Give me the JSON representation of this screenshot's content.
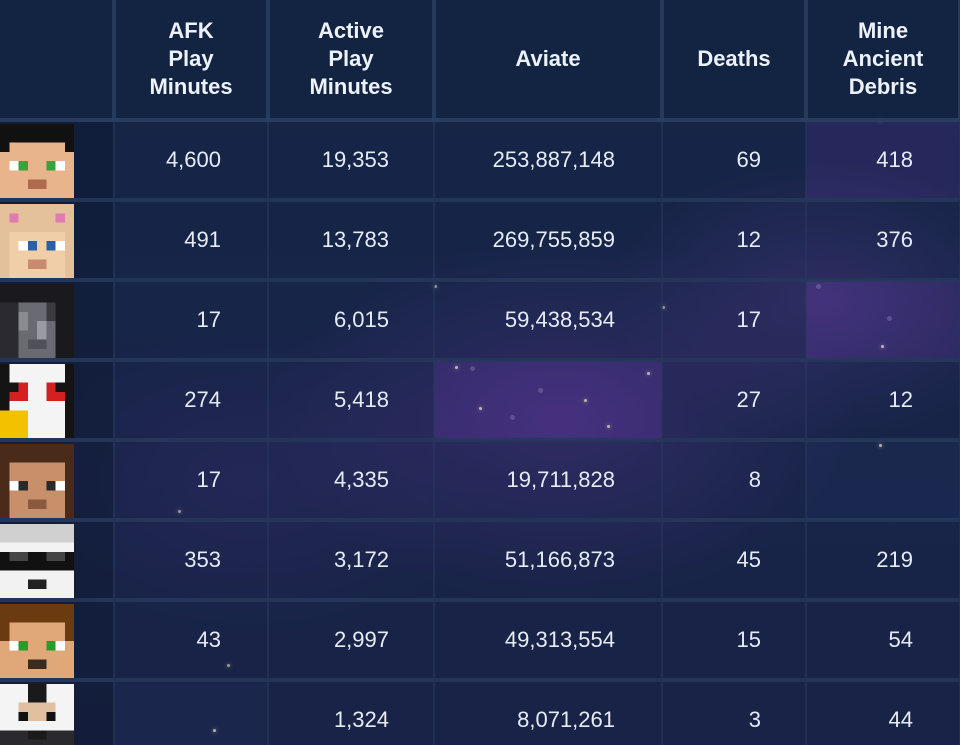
{
  "headers": {
    "afk": [
      "AFK",
      "Play",
      "Minutes"
    ],
    "active": [
      "Active",
      "Play",
      "Minutes"
    ],
    "aviate": [
      "Aviate"
    ],
    "deaths": [
      "Deaths"
    ],
    "debris": [
      "Mine",
      "Ancient",
      "Debris"
    ]
  },
  "rows": [
    {
      "afk": "4,600",
      "active": "19,353",
      "aviate": "253,887,148",
      "deaths": "69",
      "debris": "418"
    },
    {
      "afk": "491",
      "active": "13,783",
      "aviate": "269,755,859",
      "deaths": "12",
      "debris": "376"
    },
    {
      "afk": "17",
      "active": "6,015",
      "aviate": "59,438,534",
      "deaths": "17",
      "debris": ""
    },
    {
      "afk": "274",
      "active": "5,418",
      "aviate": "",
      "deaths": "27",
      "debris": "12"
    },
    {
      "afk": "17",
      "active": "4,335",
      "aviate": "19,711,828",
      "deaths": "8",
      "debris": ""
    },
    {
      "afk": "353",
      "active": "3,172",
      "aviate": "51,166,873",
      "deaths": "45",
      "debris": "219"
    },
    {
      "afk": "43",
      "active": "2,997",
      "aviate": "49,313,554",
      "deaths": "15",
      "debris": "54"
    },
    {
      "afk": "",
      "active": "1,324",
      "aviate": "8,071,261",
      "deaths": "3",
      "debris": "44"
    }
  ],
  "avatars": [
    {
      "icon": "player-skin-head-icon",
      "hair": "#111111",
      "skin": "#e8b48c",
      "eyes": "#3aa23a",
      "mouth": "#b06a50"
    },
    {
      "icon": "player-skin-head-icon",
      "hair": "#e4c19a",
      "skin": "#f0cfa8",
      "eyes": "#2c5fa8",
      "mouth": "#c98a70",
      "accent": "#e07ab0"
    },
    {
      "icon": "player-skin-head-icon",
      "hair": "#1a1a1e",
      "skin": "#6a6a72",
      "eyes": "#3a3a40",
      "mouth": "#505058"
    },
    {
      "icon": "player-skin-head-icon",
      "hair": "#141414",
      "skin": "#f4f4f4",
      "eyes": "#d42020",
      "mouth": "#f2c200"
    },
    {
      "icon": "player-skin-head-icon",
      "hair": "#4a2a18",
      "skin": "#c8906a",
      "eyes": "#2a2a2a",
      "mouth": "#8a5a40"
    },
    {
      "icon": "player-skin-head-icon",
      "hair": "#d0d0d0",
      "skin": "#f2f2f2",
      "eyes": "#111111",
      "mouth": "#222222"
    },
    {
      "icon": "player-skin-head-icon",
      "hair": "#6a3a10",
      "skin": "#e0a878",
      "eyes": "#2a9a2a",
      "mouth": "#3a2a20"
    },
    {
      "icon": "player-skin-head-icon",
      "hair": "#e8e8e8",
      "skin": "#f4f4f4",
      "eyes": "#111111",
      "mouth": "#1a1a1a"
    }
  ]
}
